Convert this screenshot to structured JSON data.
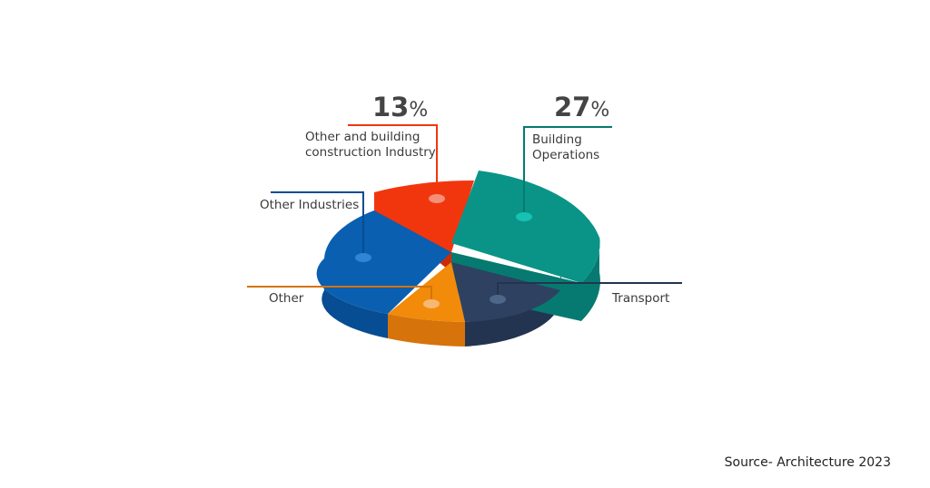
{
  "chart_data": {
    "type": "pie",
    "title": "",
    "slices": [
      {
        "label": "Building Operations",
        "value_label": "27",
        "value_suffix": "%",
        "color": "#0a9488",
        "side_color": "#067a70"
      },
      {
        "label": "Transport",
        "value_label": "",
        "value_suffix": "",
        "color": "#2e4160",
        "side_color": "#233451"
      },
      {
        "label": "Other",
        "value_label": "",
        "value_suffix": "",
        "color": "#f28a0a",
        "side_color": "#d6730a"
      },
      {
        "label": "Other Industries",
        "value_label": "",
        "value_suffix": "",
        "color": "#0a5fb0",
        "side_color": "#074d93"
      },
      {
        "label": "Other and building construction Industry",
        "value_label": "13",
        "value_suffix": "%",
        "color": "#f1360e",
        "side_color": "#cf2a08"
      }
    ],
    "label_lines": {
      "other_building": [
        "Other and building",
        "construction Industry"
      ],
      "building_ops": [
        "Building",
        "Operations"
      ],
      "other_industries": [
        "Other Industries"
      ],
      "other": [
        "Other"
      ],
      "transport": [
        "Transport"
      ]
    },
    "legend": "none"
  },
  "source": "Source- Architecture 2023"
}
